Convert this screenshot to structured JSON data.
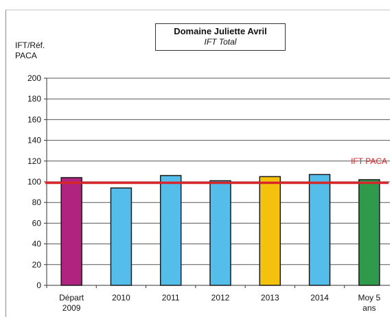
{
  "chart_data": {
    "type": "bar",
    "title": "Domaine Juliette Avril",
    "subtitle": "IFT Total",
    "ylabel": [
      "IFT/Réf.",
      "PACA"
    ],
    "ylim": [
      0,
      200
    ],
    "yticks": [
      0,
      20,
      40,
      60,
      80,
      100,
      120,
      140,
      160,
      180,
      200
    ],
    "categories": [
      [
        "Départ",
        "2009"
      ],
      [
        "2010"
      ],
      [
        "2011"
      ],
      [
        "2012"
      ],
      [
        "2013"
      ],
      [
        "2014"
      ],
      [
        "Moy 5",
        "ans"
      ]
    ],
    "values": [
      104,
      94,
      106,
      101,
      105,
      107,
      102
    ],
    "bar_colors": [
      "#b0237e",
      "#55bde9",
      "#55bde9",
      "#55bde9",
      "#f4c20d",
      "#55bde9",
      "#2f9a4c"
    ],
    "reference_line": {
      "label": "IFT PACA",
      "value": 99,
      "color": "#d6262a"
    },
    "grid": true
  }
}
